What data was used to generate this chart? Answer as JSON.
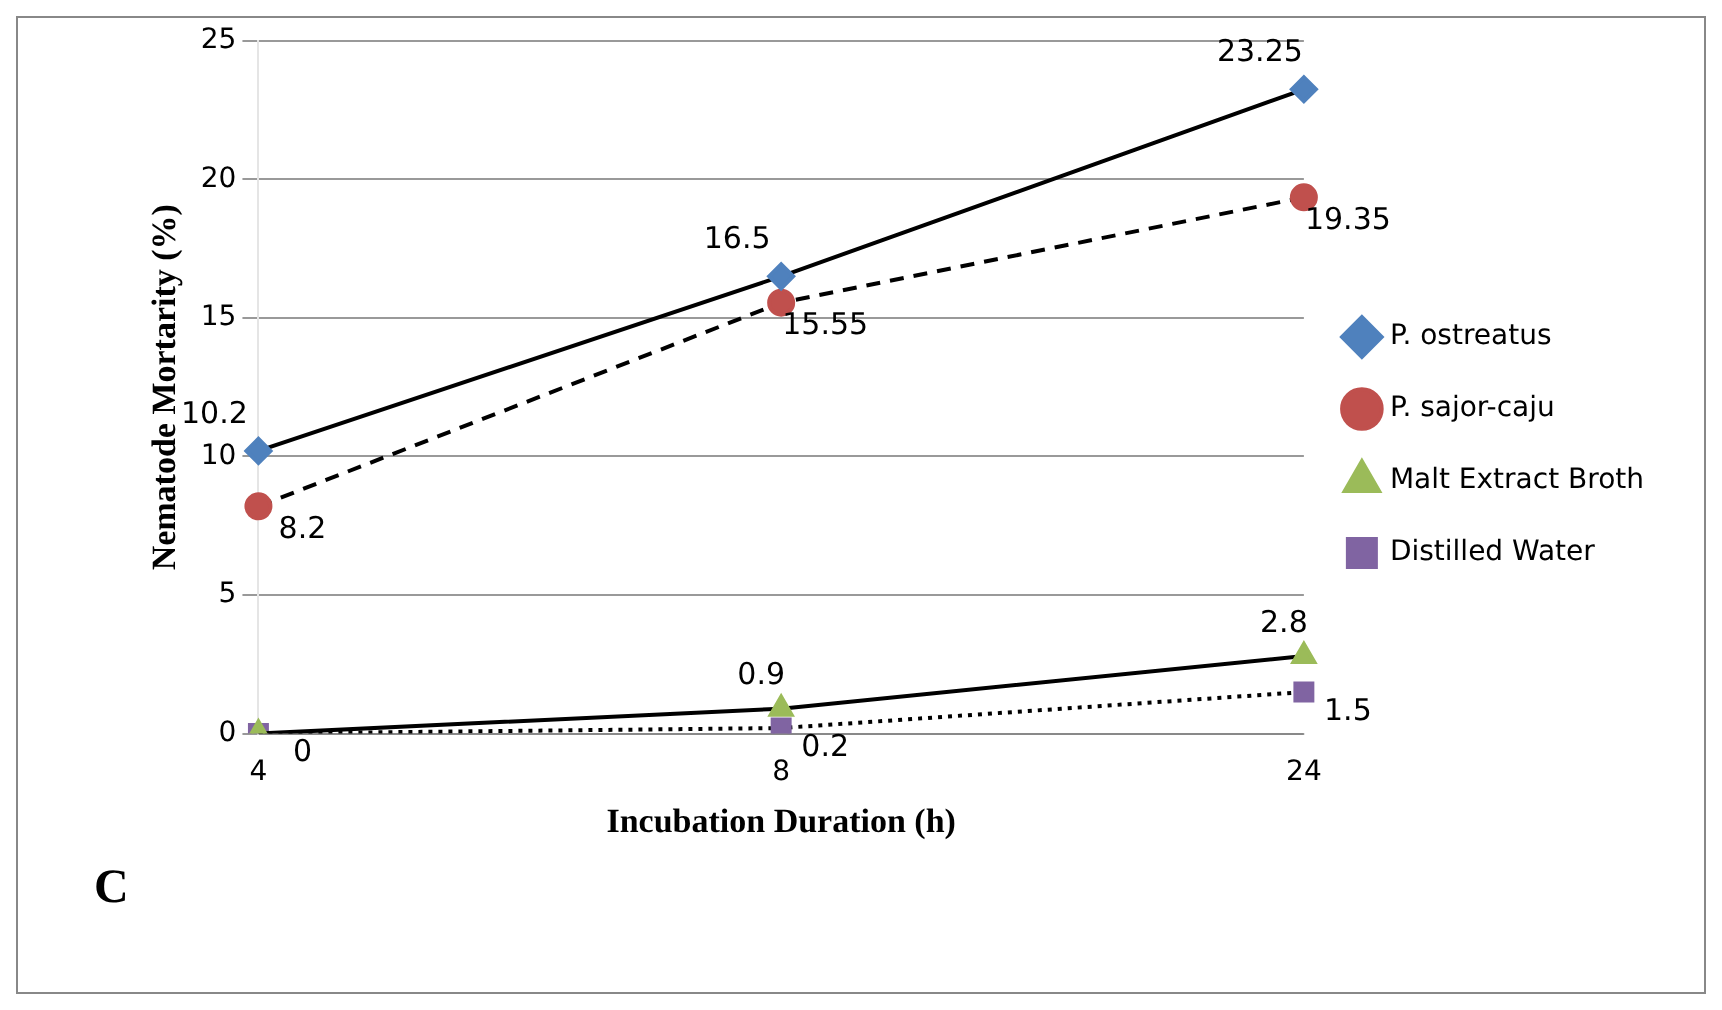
{
  "chart_data": {
    "type": "line",
    "xlabel": "Incubation Duration (h)",
    "ylabel": "Nematode Mortarity (%)",
    "categories": [
      "4",
      "8",
      "24"
    ],
    "series": [
      {
        "name": "P. ostreatus",
        "color": "#4f81bd",
        "values": [
          10.2,
          16.5,
          23.25
        ],
        "marker": "diamond",
        "line_style": "solid",
        "value_labels": [
          "10.2",
          "16.5",
          "23.25"
        ]
      },
      {
        "name": "P. sajor-caju",
        "color": "#c0504d",
        "values": [
          8.2,
          15.55,
          19.35
        ],
        "marker": "circle",
        "line_style": "dashed",
        "value_labels": [
          "8.2",
          "15.55",
          "19.35"
        ]
      },
      {
        "name": "Malt Extract Broth",
        "color": "#9bbb59",
        "values": [
          0,
          0.9,
          2.8
        ],
        "marker": "triangle",
        "line_style": "solid",
        "value_labels": [
          null,
          "0.9",
          "2.8"
        ]
      },
      {
        "name": "Distilled Water",
        "color": "#8064a2",
        "values": [
          0,
          0.2,
          1.5
        ],
        "marker": "square",
        "line_style": "dotted",
        "value_labels": [
          "0",
          "0.2",
          "1.5"
        ]
      }
    ],
    "ylim": [
      0,
      25
    ],
    "yticks": [
      0,
      5,
      10,
      15,
      20,
      25
    ],
    "grid": "y",
    "legend": "right",
    "annotations": [
      "C"
    ]
  }
}
